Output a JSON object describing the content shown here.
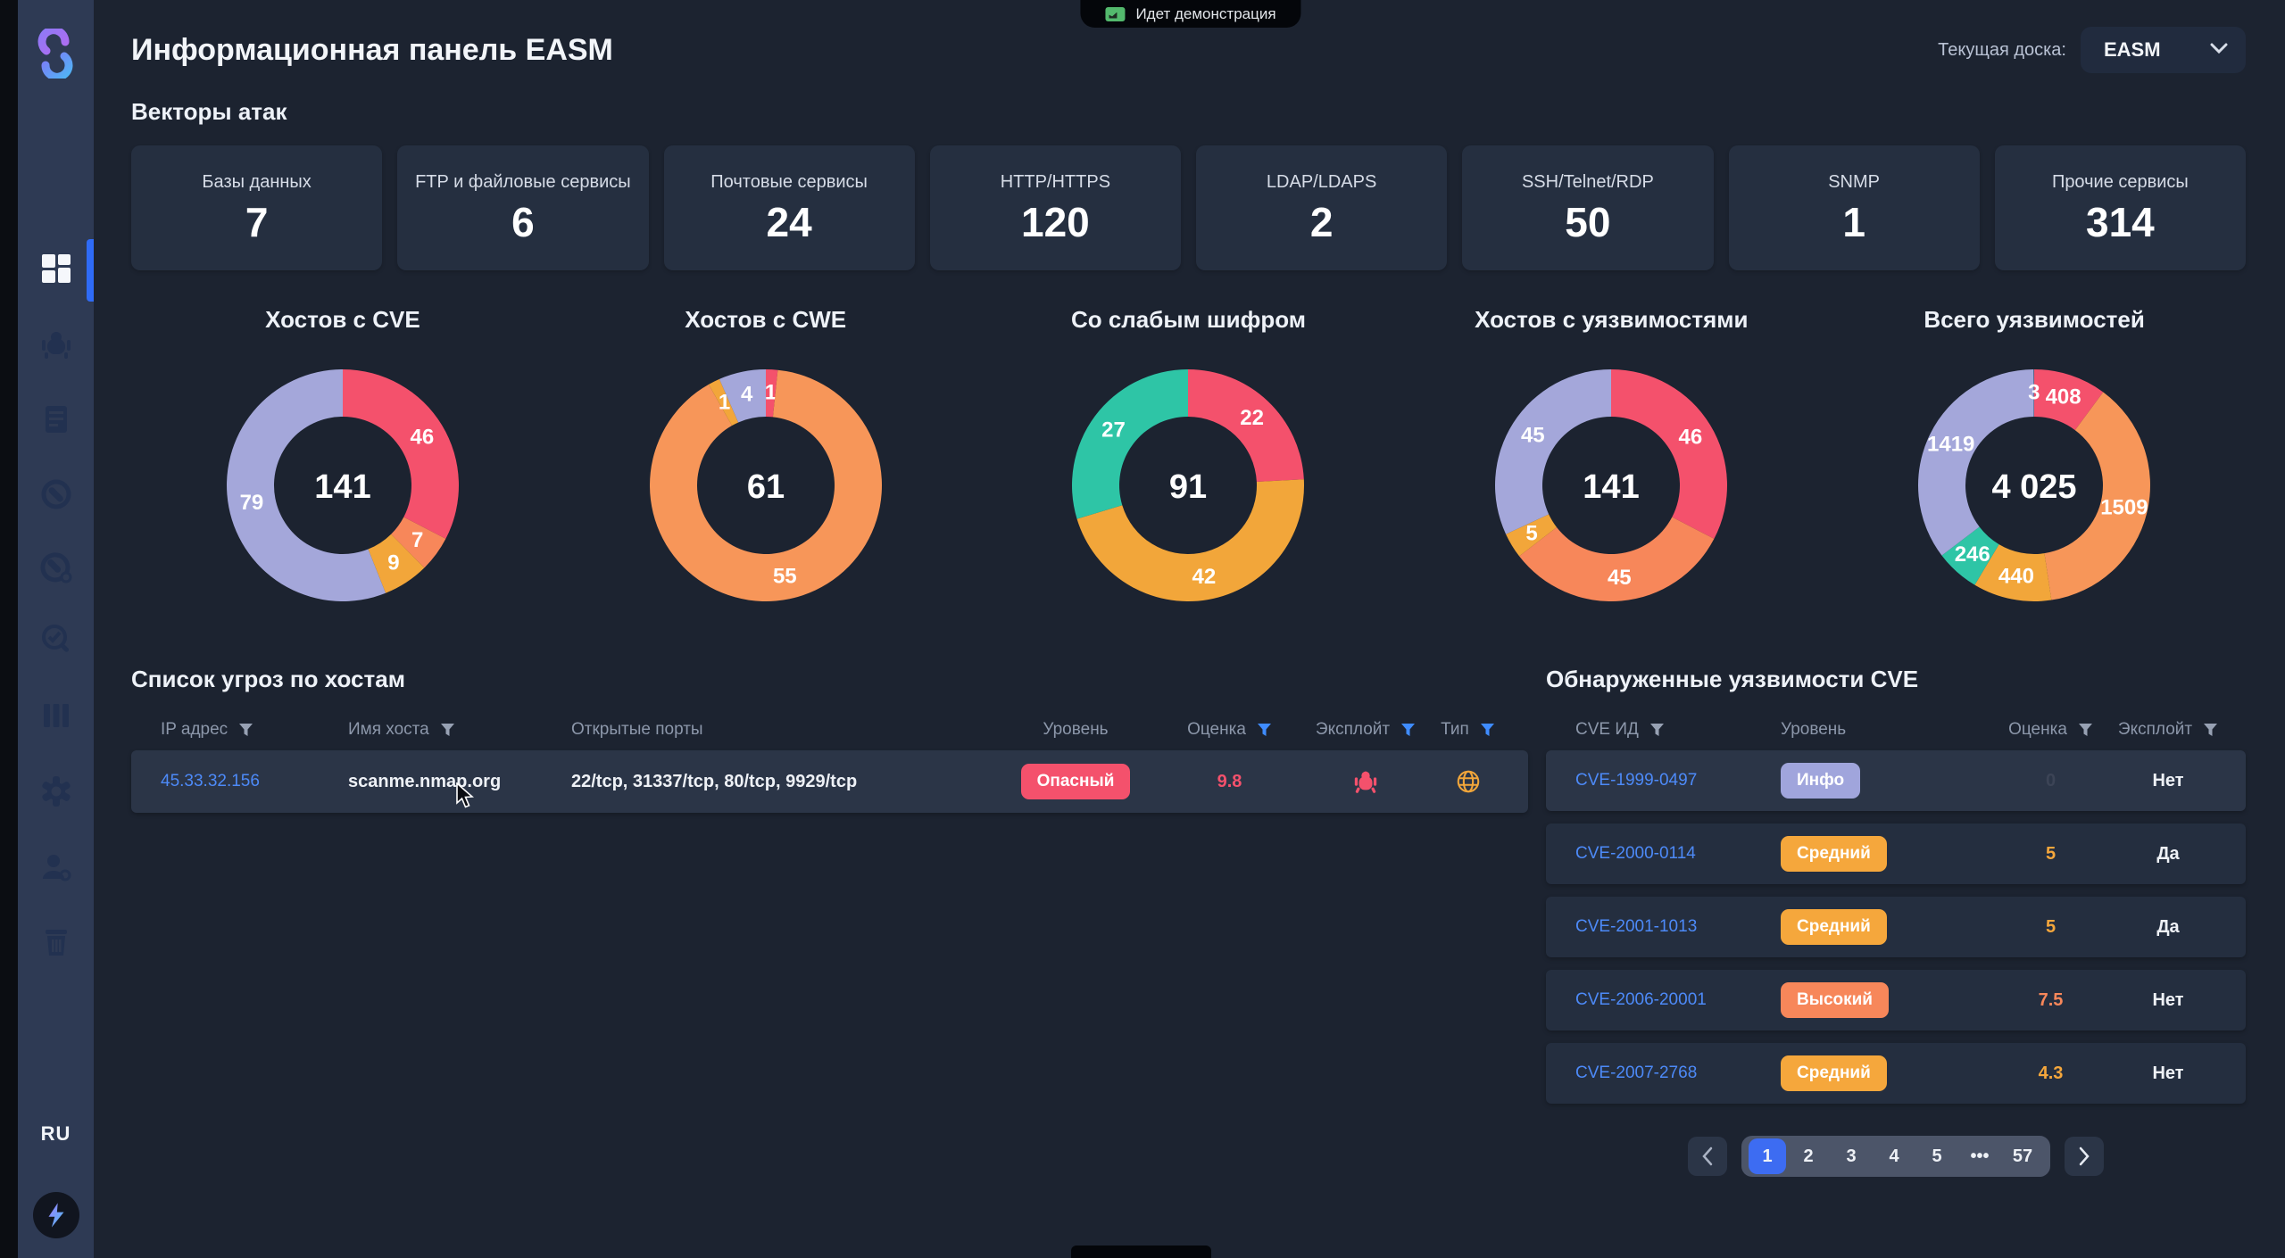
{
  "banner": {
    "text": "Идет демонстрация"
  },
  "header": {
    "title": "Информационная панель EASM",
    "board_label": "Текущая доска:",
    "board_value": "EASM"
  },
  "sidebar": {
    "lang": "RU",
    "icons": [
      "dashboard-grid-icon",
      "bug-icon",
      "report-icon",
      "gauge-icon",
      "scan-icon",
      "audit-check-icon",
      "columns-icon",
      "gear-icon",
      "users-icon",
      "trash-icon"
    ]
  },
  "attack_vectors": {
    "heading": "Векторы атак",
    "cards": [
      {
        "label": "Базы данных",
        "value": "7"
      },
      {
        "label": "FTP и файловые сервисы",
        "value": "6"
      },
      {
        "label": "Почтовые сервисы",
        "value": "24"
      },
      {
        "label": "HTTP/HTTPS",
        "value": "120"
      },
      {
        "label": "LDAP/LDAPS",
        "value": "2"
      },
      {
        "label": "SSH/Telnet/RDP",
        "value": "50"
      },
      {
        "label": "SNMP",
        "value": "1"
      },
      {
        "label": "Прочие сервисы",
        "value": "314"
      }
    ]
  },
  "charts": [
    {
      "type": "pie",
      "title": "Хостов с CVE",
      "total": "141",
      "segments": [
        {
          "label": "46",
          "value": 46,
          "color": "#f4516c"
        },
        {
          "label": "7",
          "value": 7,
          "color": "#f7875a"
        },
        {
          "label": "9",
          "value": 9,
          "color": "#f2a63a"
        },
        {
          "label": "79",
          "value": 79,
          "color": "#a4a7da"
        }
      ]
    },
    {
      "type": "pie",
      "title": "Хостов с CWE",
      "total": "61",
      "segments": [
        {
          "label": "1",
          "value": 1,
          "color": "#f4516c"
        },
        {
          "label": "55",
          "value": 55,
          "color": "#f79659"
        },
        {
          "label": "1",
          "value": 1,
          "color": "#f2a63a"
        },
        {
          "label": "4",
          "value": 4,
          "color": "#a4a7da"
        }
      ]
    },
    {
      "type": "pie",
      "title": "Со слабым шифром",
      "total": "91",
      "segments": [
        {
          "label": "22",
          "value": 22,
          "color": "#f4516c"
        },
        {
          "label": "42",
          "value": 42,
          "color": "#f2a63a"
        },
        {
          "label": "27",
          "value": 27,
          "color": "#2ec5a6"
        }
      ]
    },
    {
      "type": "pie",
      "title": "Хостов с уязвимостями",
      "total": "141",
      "segments": [
        {
          "label": "46",
          "value": 46,
          "color": "#f4516c"
        },
        {
          "label": "45",
          "value": 45,
          "color": "#f7875a"
        },
        {
          "label": "5",
          "value": 5,
          "color": "#f2a63a"
        },
        {
          "label": "45",
          "value": 45,
          "color": "#a4a7da"
        }
      ]
    },
    {
      "type": "pie",
      "title": "Всего уязвимостей",
      "total": "4 025",
      "segments": [
        {
          "label": "408",
          "value": 408,
          "color": "#f4516c"
        },
        {
          "label": "1509",
          "value": 1509,
          "color": "#f79659"
        },
        {
          "label": "440",
          "value": 440,
          "color": "#f2a63a"
        },
        {
          "label": "246",
          "value": 246,
          "color": "#2ec5a6"
        },
        {
          "label": "1419",
          "value": 1419,
          "color": "#a4a7da"
        },
        {
          "label": "3",
          "value": 3,
          "color": "#3a4a66"
        }
      ]
    }
  ],
  "threats": {
    "heading": "Список угроз по хостам",
    "columns": [
      {
        "label": "IP адрес",
        "filter": "#97a1b3"
      },
      {
        "label": "Имя хоста",
        "filter": "#97a1b3"
      },
      {
        "label": "Открытые порты",
        "filter": ""
      },
      {
        "label": "Уровень",
        "filter": ""
      },
      {
        "label": "Оценка",
        "filter": "#3f8cff"
      },
      {
        "label": "Эксплойт",
        "filter": "#3f8cff"
      },
      {
        "label": "Тип",
        "filter": "#3f8cff"
      }
    ],
    "row": {
      "ip": "45.33.32.156",
      "host": "scanme.nmap.org",
      "ports": "22/tcp, 31337/tcp, 80/tcp, 9929/tcp",
      "level": "Опасный",
      "level_color": "#f4516c",
      "score": "9.8",
      "score_color": "#f4516c",
      "exploit_icon": "bug-icon",
      "exploit_color": "#f4516c",
      "type_icon": "globe-icon",
      "type_color": "#f2a63a"
    }
  },
  "cves": {
    "heading": "Обнаруженные уязвимости CVE",
    "columns": [
      {
        "label": "CVE ИД",
        "filter": "#97a1b3"
      },
      {
        "label": "Уровень",
        "filter": ""
      },
      {
        "label": "Оценка",
        "filter": "#97a1b3"
      },
      {
        "label": "Эксплойт",
        "filter": "#97a1b3"
      }
    ],
    "rows": [
      {
        "id": "CVE-1999-0497",
        "level": "Инфо",
        "level_color": "#a0a5dc",
        "score": "0",
        "score_color": "#3c4456",
        "exploit": "Нет",
        "row_bg": "#2b3547"
      },
      {
        "id": "CVE-2000-0114",
        "level": "Средний",
        "level_color": "#f5a73c",
        "score": "5",
        "score_color": "#f5a73c",
        "exploit": "Да",
        "row_bg": "#242e3f"
      },
      {
        "id": "CVE-2001-1013",
        "level": "Средний",
        "level_color": "#f5a73c",
        "score": "5",
        "score_color": "#f5a73c",
        "exploit": "Да",
        "row_bg": "#242e3f"
      },
      {
        "id": "CVE-2006-20001",
        "level": "Высокий",
        "level_color": "#f7875a",
        "score": "7.5",
        "score_color": "#f7875a",
        "exploit": "Нет",
        "row_bg": "#242e3f"
      },
      {
        "id": "CVE-2007-2768",
        "level": "Средний",
        "level_color": "#f5a73c",
        "score": "4.3",
        "score_color": "#f5a73c",
        "exploit": "Нет",
        "row_bg": "#242e3f"
      }
    ],
    "pagination": {
      "prev": "‹",
      "next": "›",
      "pages": [
        "1",
        "2",
        "3",
        "4",
        "5",
        "•••",
        "57"
      ],
      "active": "1"
    }
  }
}
